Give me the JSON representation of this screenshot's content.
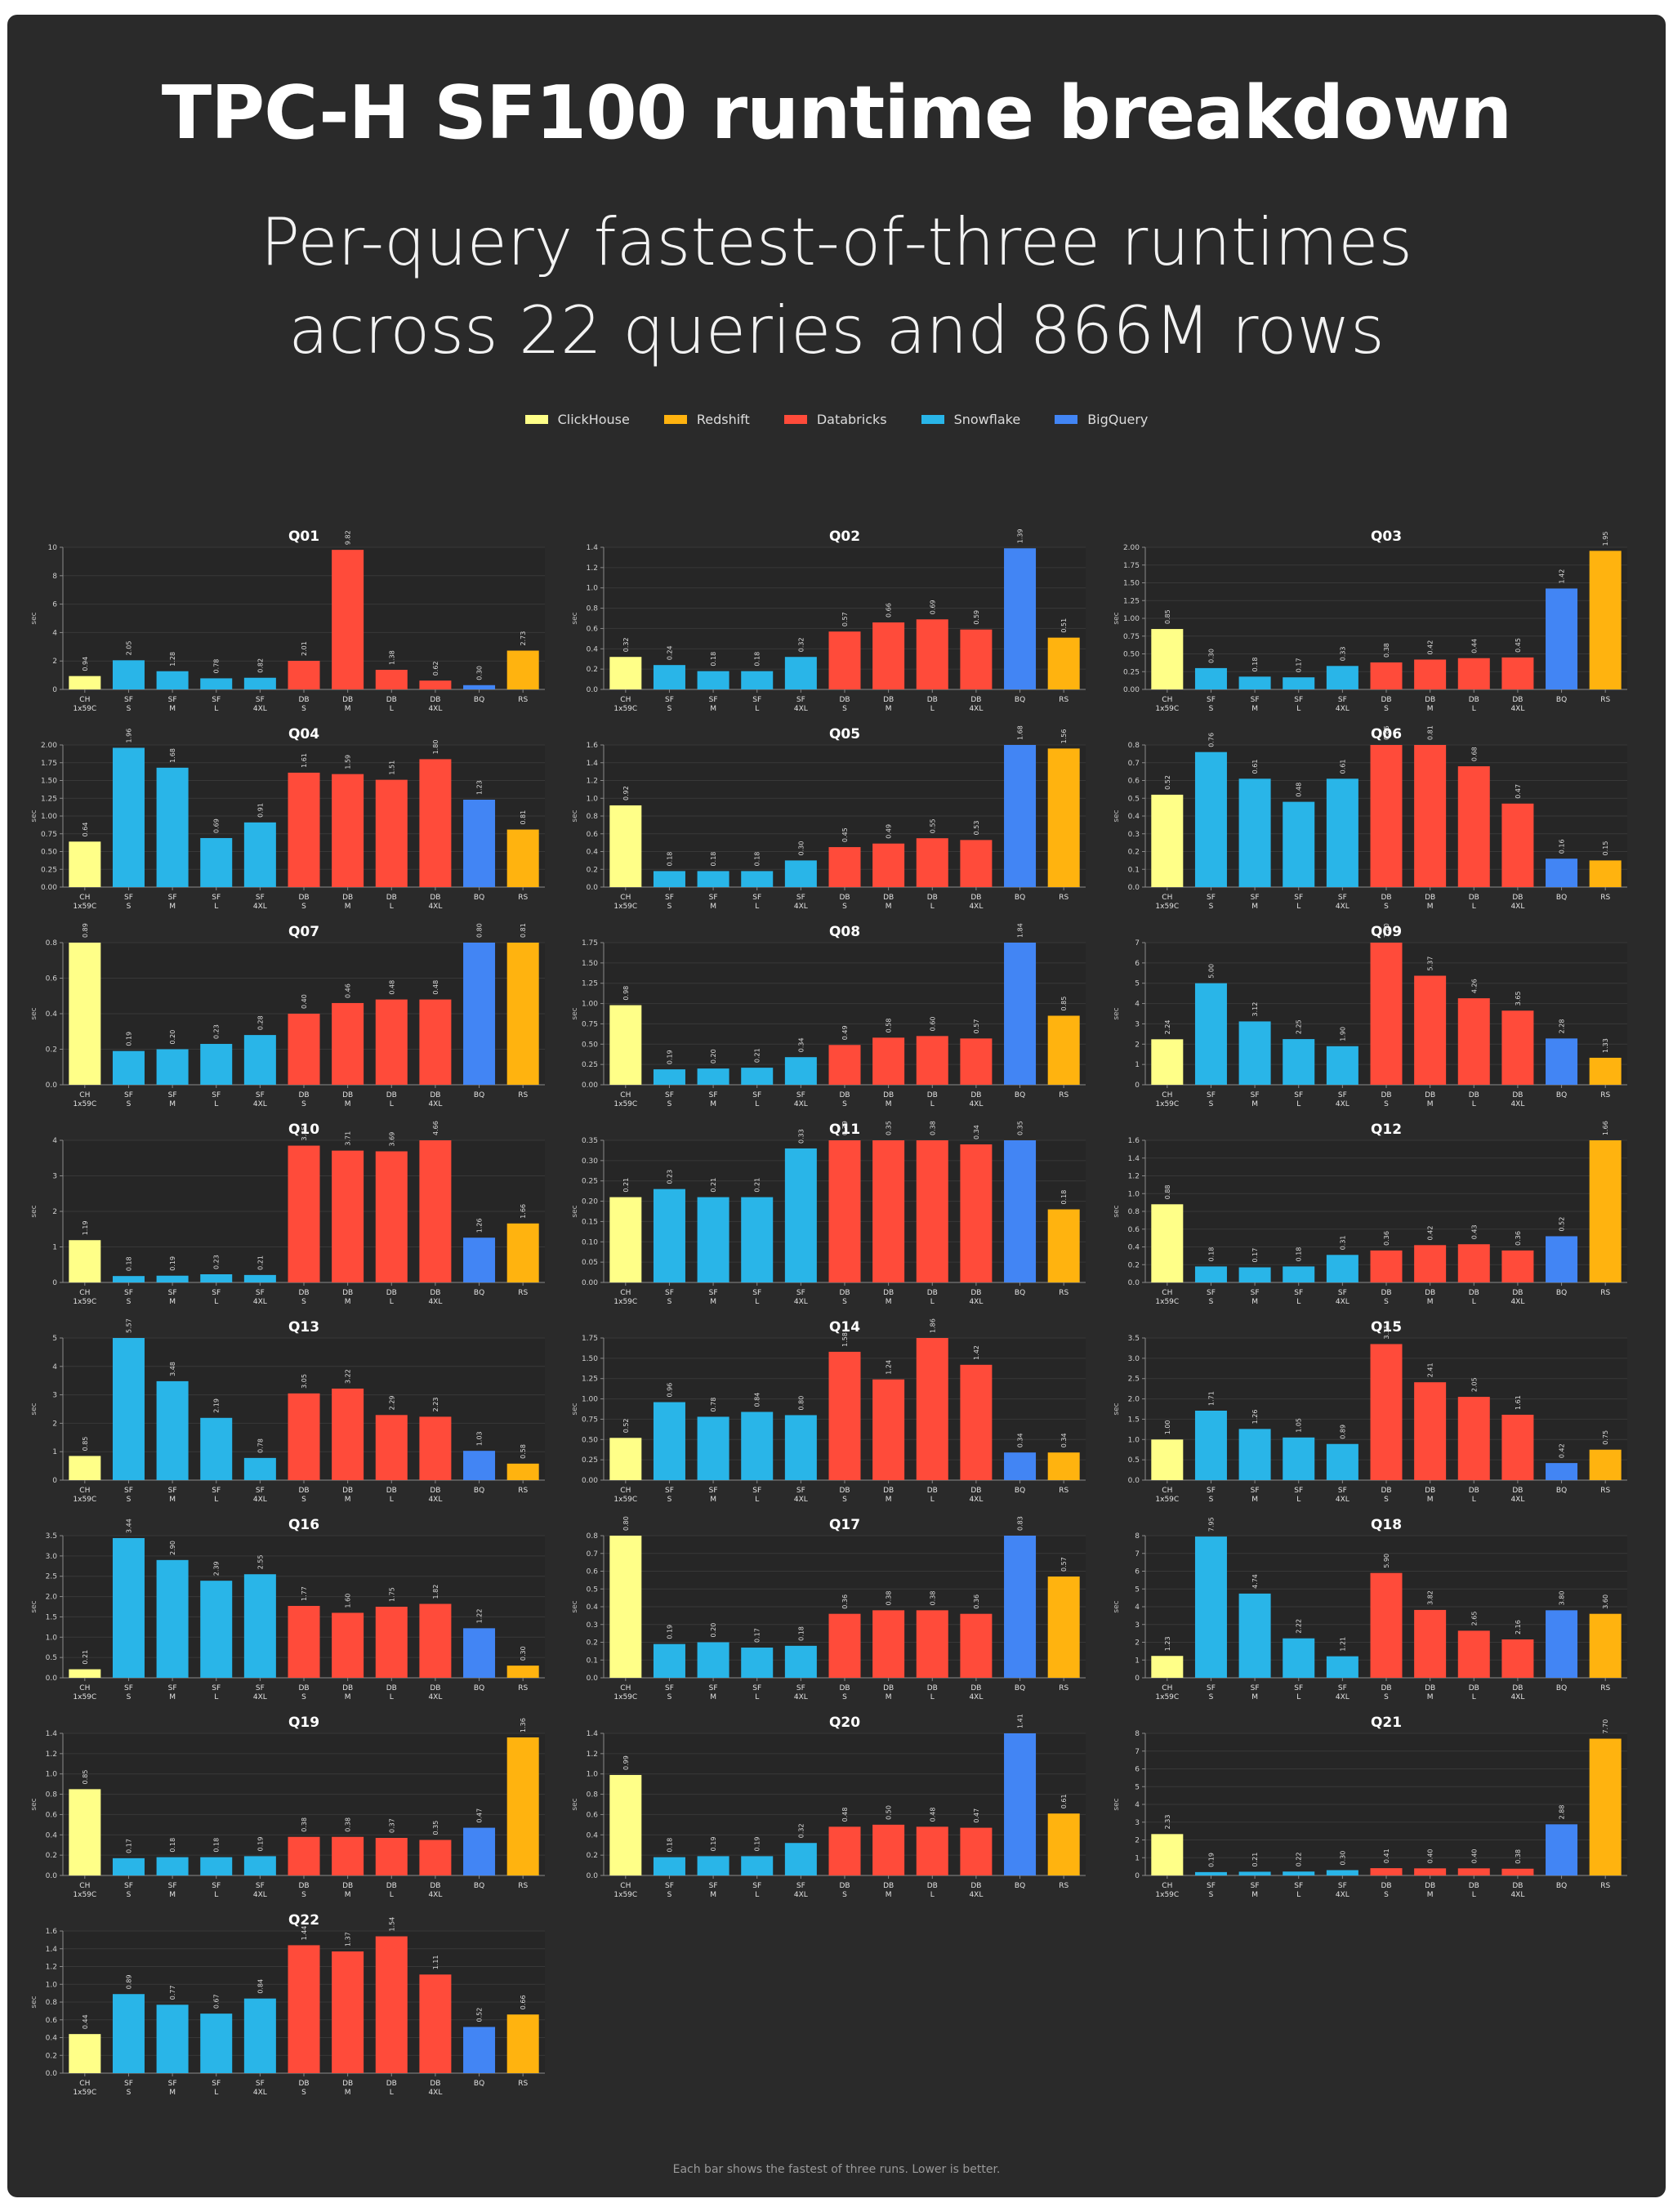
{
  "title": "TPC-H SF100 runtime breakdown",
  "subtitle_lines": [
    "Per-query fastest-of-three runtimes",
    "across 22 queries and 866M rows"
  ],
  "legend": [
    {
      "name": "ClickHouse",
      "color": "#ffff88"
    },
    {
      "name": "Redshift",
      "color": "#ffb30f"
    },
    {
      "name": "Databricks",
      "color": "#ff4b3a"
    },
    {
      "name": "Snowflake",
      "color": "#29b5e8"
    },
    {
      "name": "BigQuery",
      "color": "#4285f4"
    }
  ],
  "footer": "Each bar shows the fastest of three runs. Lower is better.",
  "chart_data": {
    "type": "bar",
    "ylabel": "sec",
    "categories": [
      {
        "top": "CH",
        "bottom": "1x59C",
        "color": "#ffff88"
      },
      {
        "top": "SF",
        "bottom": "S",
        "color": "#29b5e8"
      },
      {
        "top": "SF",
        "bottom": "M",
        "color": "#29b5e8"
      },
      {
        "top": "SF",
        "bottom": "L",
        "color": "#29b5e8"
      },
      {
        "top": "SF",
        "bottom": "4XL",
        "color": "#29b5e8"
      },
      {
        "top": "DB",
        "bottom": "S",
        "color": "#ff4b3a"
      },
      {
        "top": "DB",
        "bottom": "M",
        "color": "#ff4b3a"
      },
      {
        "top": "DB",
        "bottom": "L",
        "color": "#ff4b3a"
      },
      {
        "top": "DB",
        "bottom": "4XL",
        "color": "#ff4b3a"
      },
      {
        "top": "BQ",
        "bottom": "",
        "color": "#4285f4"
      },
      {
        "top": "RS",
        "bottom": "",
        "color": "#ffb30f"
      }
    ],
    "panels": [
      {
        "title": "Q01",
        "ticks": [
          "0",
          "2",
          "4",
          "6",
          "8",
          "10"
        ],
        "ymax": 10,
        "values": [
          0.94,
          2.05,
          1.28,
          0.78,
          0.82,
          2.01,
          9.82,
          1.38,
          0.62,
          0.3,
          2.73
        ],
        "labels": [
          "0.94",
          "2.05",
          "1.28",
          "0.78",
          "0.82",
          "2.01",
          "9.82",
          "1.38",
          "0.62",
          "0.30",
          "2.73"
        ]
      },
      {
        "title": "Q02",
        "ticks": [
          "0.0",
          "0.2",
          "0.4",
          "0.6",
          "0.8",
          "1.0",
          "1.2",
          "1.4"
        ],
        "ymax": 1.4,
        "values": [
          0.32,
          0.24,
          0.18,
          0.18,
          0.32,
          0.57,
          0.66,
          0.69,
          0.59,
          1.39,
          0.51
        ],
        "labels": [
          "0.32",
          "0.24",
          "0.18",
          "0.18",
          "0.32",
          "0.57",
          "0.66",
          "0.69",
          "0.59",
          "1.39",
          "0.51"
        ]
      },
      {
        "title": "Q03",
        "ticks": [
          "0.00",
          "0.25",
          "0.50",
          "0.75",
          "1.00",
          "1.25",
          "1.50",
          "1.75",
          "2.00"
        ],
        "ymax": 2.0,
        "values": [
          0.85,
          0.3,
          0.18,
          0.17,
          0.33,
          0.38,
          0.42,
          0.44,
          0.45,
          1.42,
          1.95
        ],
        "labels": [
          "0.85",
          "0.30",
          "0.18",
          "0.17",
          "0.33",
          "0.38",
          "0.42",
          "0.44",
          "0.45",
          "1.42",
          "1.95"
        ]
      },
      {
        "title": "Q04",
        "ticks": [
          "0.00",
          "0.25",
          "0.50",
          "0.75",
          "1.00",
          "1.25",
          "1.50",
          "1.75",
          "2.00"
        ],
        "ymax": 2.0,
        "values": [
          0.64,
          1.96,
          1.68,
          0.69,
          0.91,
          1.61,
          1.59,
          1.51,
          1.8,
          1.23,
          0.81
        ],
        "labels": [
          "0.64",
          "1.96",
          "1.68",
          "0.69",
          "0.91",
          "1.61",
          "1.59",
          "1.51",
          "1.80",
          "1.23",
          "0.81"
        ]
      },
      {
        "title": "Q05",
        "ticks": [
          "0.0",
          "0.2",
          "0.4",
          "0.6",
          "0.8",
          "1.0",
          "1.2",
          "1.4",
          "1.6"
        ],
        "ymax": 1.6,
        "values": [
          0.92,
          0.18,
          0.18,
          0.18,
          0.3,
          0.45,
          0.49,
          0.55,
          0.53,
          1.68,
          1.56
        ],
        "labels": [
          "0.92",
          "0.18",
          "0.18",
          "0.18",
          "0.30",
          "0.45",
          "0.49",
          "0.55",
          "0.53",
          "1.68",
          "1.56"
        ]
      },
      {
        "title": "Q06",
        "ticks": [
          "0.0",
          "0.1",
          "0.2",
          "0.3",
          "0.4",
          "0.5",
          "0.6",
          "0.7",
          "0.8"
        ],
        "ymax": 0.8,
        "values": [
          0.52,
          0.76,
          0.61,
          0.48,
          0.61,
          0.85,
          0.81,
          0.68,
          0.47,
          0.16,
          0.15
        ],
        "labels": [
          "0.52",
          "0.76",
          "0.61",
          "0.48",
          "0.61",
          "0.85",
          "0.81",
          "0.68",
          "0.47",
          "0.16",
          "0.15"
        ]
      },
      {
        "title": "Q07",
        "ticks": [
          "0.0",
          "0.2",
          "0.4",
          "0.6",
          "0.8"
        ],
        "ymax": 0.8,
        "values": [
          0.89,
          0.19,
          0.2,
          0.23,
          0.28,
          0.4,
          0.46,
          0.48,
          0.48,
          0.8,
          0.81
        ],
        "labels": [
          "0.89",
          "0.19",
          "0.20",
          "0.23",
          "0.28",
          "0.40",
          "0.46",
          "0.48",
          "0.48",
          "0.80",
          "0.81"
        ]
      },
      {
        "title": "Q08",
        "ticks": [
          "0.00",
          "0.25",
          "0.50",
          "0.75",
          "1.00",
          "1.25",
          "1.50",
          "1.75"
        ],
        "ymax": 1.75,
        "values": [
          0.98,
          0.19,
          0.2,
          0.21,
          0.34,
          0.49,
          0.58,
          0.6,
          0.57,
          1.84,
          0.85
        ],
        "labels": [
          "0.98",
          "0.19",
          "0.20",
          "0.21",
          "0.34",
          "0.49",
          "0.58",
          "0.60",
          "0.57",
          "1.84",
          "0.85"
        ]
      },
      {
        "title": "Q09",
        "ticks": [
          "0",
          "1",
          "2",
          "3",
          "4",
          "5",
          "6",
          "7"
        ],
        "ymax": 7,
        "values": [
          2.24,
          5.0,
          3.12,
          2.25,
          1.9,
          7.2,
          5.37,
          4.26,
          3.65,
          2.28,
          1.33
        ],
        "labels": [
          "2.24",
          "5.00",
          "3.12",
          "2.25",
          "1.90",
          "7.20",
          "5.37",
          "4.26",
          "3.65",
          "2.28",
          "1.33"
        ]
      },
      {
        "title": "Q10",
        "ticks": [
          "0",
          "1",
          "2",
          "3",
          "4"
        ],
        "ymax": 4,
        "values": [
          1.19,
          0.18,
          0.19,
          0.23,
          0.21,
          3.85,
          3.71,
          3.69,
          4.66,
          1.26,
          1.66
        ],
        "labels": [
          "1.19",
          "0.18",
          "0.19",
          "0.23",
          "0.21",
          "3.85",
          "3.71",
          "3.69",
          "4.66",
          "1.26",
          "1.66"
        ]
      },
      {
        "title": "Q11",
        "ticks": [
          "0.00",
          "0.05",
          "0.10",
          "0.15",
          "0.20",
          "0.25",
          "0.30",
          "0.35"
        ],
        "ymax": 0.35,
        "values": [
          0.21,
          0.23,
          0.21,
          0.21,
          0.33,
          0.39,
          0.35,
          0.38,
          0.34,
          0.35,
          0.18
        ],
        "labels": [
          "0.21",
          "0.23",
          "0.21",
          "0.21",
          "0.33",
          "0.39",
          "0.35",
          "0.38",
          "0.34",
          "0.35",
          "0.18"
        ]
      },
      {
        "title": "Q12",
        "ticks": [
          "0.0",
          "0.2",
          "0.4",
          "0.6",
          "0.8",
          "1.0",
          "1.2",
          "1.4",
          "1.6"
        ],
        "ymax": 1.6,
        "values": [
          0.88,
          0.18,
          0.17,
          0.18,
          0.31,
          0.36,
          0.42,
          0.43,
          0.36,
          0.52,
          1.66
        ],
        "labels": [
          "0.88",
          "0.18",
          "0.17",
          "0.18",
          "0.31",
          "0.36",
          "0.42",
          "0.43",
          "0.36",
          "0.52",
          "1.66"
        ]
      },
      {
        "title": "Q13",
        "ticks": [
          "0",
          "1",
          "2",
          "3",
          "4",
          "5"
        ],
        "ymax": 5,
        "values": [
          0.85,
          5.57,
          3.48,
          2.19,
          0.78,
          3.05,
          3.22,
          2.29,
          2.23,
          1.03,
          0.58
        ],
        "labels": [
          "0.85",
          "5.57",
          "3.48",
          "2.19",
          "0.78",
          "3.05",
          "3.22",
          "2.29",
          "2.23",
          "1.03",
          "0.58"
        ]
      },
      {
        "title": "Q14",
        "ticks": [
          "0.00",
          "0.25",
          "0.50",
          "0.75",
          "1.00",
          "1.25",
          "1.50",
          "1.75"
        ],
        "ymax": 1.75,
        "values": [
          0.52,
          0.96,
          0.78,
          0.84,
          0.8,
          1.58,
          1.24,
          1.86,
          1.42,
          0.34,
          0.34
        ],
        "labels": [
          "0.52",
          "0.96",
          "0.78",
          "0.84",
          "0.80",
          "1.58",
          "1.24",
          "1.86",
          "1.42",
          "0.34",
          "0.34"
        ]
      },
      {
        "title": "Q15",
        "ticks": [
          "0.0",
          "0.5",
          "1.0",
          "1.5",
          "2.0",
          "2.5",
          "3.0",
          "3.5"
        ],
        "ymax": 3.5,
        "values": [
          1.0,
          1.71,
          1.26,
          1.05,
          0.89,
          3.35,
          2.41,
          2.05,
          1.61,
          0.42,
          0.75
        ],
        "labels": [
          "1.00",
          "1.71",
          "1.26",
          "1.05",
          "0.89",
          "3.35",
          "2.41",
          "2.05",
          "1.61",
          "0.42",
          "0.75"
        ]
      },
      {
        "title": "Q16",
        "ticks": [
          "0.0",
          "0.5",
          "1.0",
          "1.5",
          "2.0",
          "2.5",
          "3.0",
          "3.5"
        ],
        "ymax": 3.5,
        "values": [
          0.21,
          3.44,
          2.9,
          2.39,
          2.55,
          1.77,
          1.6,
          1.75,
          1.82,
          1.22,
          0.3
        ],
        "labels": [
          "0.21",
          "3.44",
          "2.90",
          "2.39",
          "2.55",
          "1.77",
          "1.60",
          "1.75",
          "1.82",
          "1.22",
          "0.30"
        ]
      },
      {
        "title": "Q17",
        "ticks": [
          "0.0",
          "0.1",
          "0.2",
          "0.3",
          "0.4",
          "0.5",
          "0.6",
          "0.7",
          "0.8"
        ],
        "ymax": 0.8,
        "values": [
          0.8,
          0.19,
          0.2,
          0.17,
          0.18,
          0.36,
          0.38,
          0.38,
          0.36,
          0.83,
          0.57
        ],
        "labels": [
          "0.80",
          "0.19",
          "0.20",
          "0.17",
          "0.18",
          "0.36",
          "0.38",
          "0.38",
          "0.36",
          "0.83",
          "0.57"
        ]
      },
      {
        "title": "Q18",
        "ticks": [
          "0",
          "1",
          "2",
          "3",
          "4",
          "5",
          "6",
          "7",
          "8"
        ],
        "ymax": 8,
        "values": [
          1.23,
          7.95,
          4.74,
          2.22,
          1.21,
          5.9,
          3.82,
          2.65,
          2.16,
          3.8,
          3.6
        ],
        "labels": [
          "1.23",
          "7.95",
          "4.74",
          "2.22",
          "1.21",
          "5.90",
          "3.82",
          "2.65",
          "2.16",
          "3.80",
          "3.60"
        ]
      },
      {
        "title": "Q19",
        "ticks": [
          "0.0",
          "0.2",
          "0.4",
          "0.6",
          "0.8",
          "1.0",
          "1.2",
          "1.4"
        ],
        "ymax": 1.4,
        "values": [
          0.85,
          0.17,
          0.18,
          0.18,
          0.19,
          0.38,
          0.38,
          0.37,
          0.35,
          0.47,
          1.36
        ],
        "labels": [
          "0.85",
          "0.17",
          "0.18",
          "0.18",
          "0.19",
          "0.38",
          "0.38",
          "0.37",
          "0.35",
          "0.47",
          "1.36"
        ]
      },
      {
        "title": "Q20",
        "ticks": [
          "0.0",
          "0.2",
          "0.4",
          "0.6",
          "0.8",
          "1.0",
          "1.2",
          "1.4"
        ],
        "ymax": 1.4,
        "values": [
          0.99,
          0.18,
          0.19,
          0.19,
          0.32,
          0.48,
          0.5,
          0.48,
          0.47,
          1.41,
          0.61
        ],
        "labels": [
          "0.99",
          "0.18",
          "0.19",
          "0.19",
          "0.32",
          "0.48",
          "0.50",
          "0.48",
          "0.47",
          "1.41",
          "0.61"
        ]
      },
      {
        "title": "Q21",
        "ticks": [
          "0",
          "1",
          "2",
          "3",
          "4",
          "5",
          "6",
          "7",
          "8"
        ],
        "ymax": 8,
        "values": [
          2.33,
          0.19,
          0.21,
          0.22,
          0.3,
          0.41,
          0.4,
          0.4,
          0.38,
          2.88,
          7.7
        ],
        "labels": [
          "2.33",
          "0.19",
          "0.21",
          "0.22",
          "0.30",
          "0.41",
          "0.40",
          "0.40",
          "0.38",
          "2.88",
          "7.70"
        ]
      },
      {
        "title": "Q22",
        "ticks": [
          "0.0",
          "0.2",
          "0.4",
          "0.6",
          "0.8",
          "1.0",
          "1.2",
          "1.4",
          "1.6"
        ],
        "ymax": 1.6,
        "values": [
          0.44,
          0.89,
          0.77,
          0.67,
          0.84,
          1.44,
          1.37,
          1.54,
          1.11,
          0.52,
          0.66
        ],
        "labels": [
          "0.44",
          "0.89",
          "0.77",
          "0.67",
          "0.84",
          "1.44",
          "1.37",
          "1.54",
          "1.11",
          "0.52",
          "0.66"
        ]
      }
    ]
  }
}
